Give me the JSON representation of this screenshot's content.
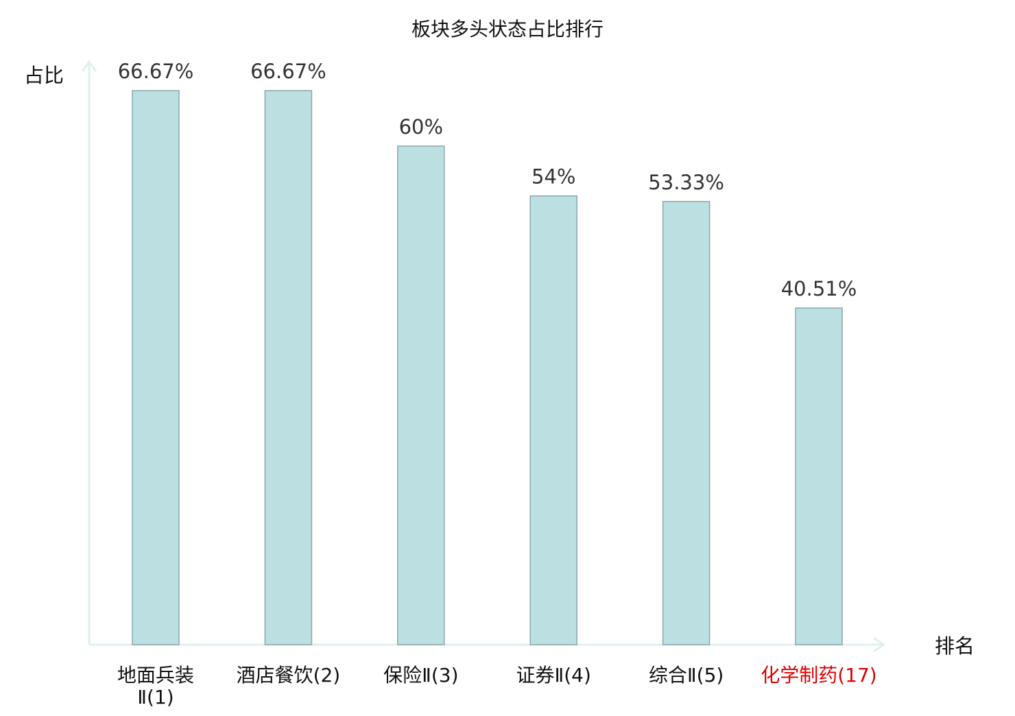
{
  "chart_data": {
    "type": "bar",
    "title": "板块多头状态占比排行",
    "ylabel": "占比",
    "xlabel": "排名",
    "ylim": [
      0,
      80
    ],
    "grid": false,
    "categories": [
      {
        "lines": [
          "地面兵装",
          "Ⅱ(1)"
        ],
        "highlight": false
      },
      {
        "lines": [
          "酒店餐饮(2)"
        ],
        "highlight": false
      },
      {
        "lines": [
          "保险Ⅱ(3)"
        ],
        "highlight": false
      },
      {
        "lines": [
          "证券Ⅱ(4)"
        ],
        "highlight": false
      },
      {
        "lines": [
          "综合Ⅱ(5)"
        ],
        "highlight": false
      },
      {
        "lines": [
          "化学制药(17)"
        ],
        "highlight": true
      }
    ],
    "values": [
      66.67,
      66.67,
      60,
      54,
      53.33,
      40.51
    ],
    "value_labels": [
      "66.67%",
      "66.67%",
      "60%",
      "54%",
      "53.33%",
      "40.51%"
    ],
    "colors": {
      "bar_fill": "#bce0e2",
      "bar_stroke": "#8aa7aa",
      "axis": "#dff0ee",
      "label": "#111111",
      "highlight_label": "#dd0000",
      "value_text": "#333333"
    }
  }
}
